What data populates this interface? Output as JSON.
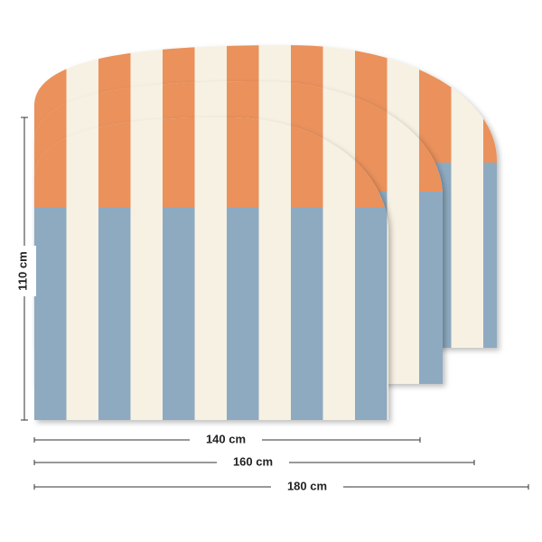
{
  "dimensions": {
    "height": "110 cm",
    "widths": [
      "140 cm",
      "160 cm",
      "180 cm"
    ]
  }
}
